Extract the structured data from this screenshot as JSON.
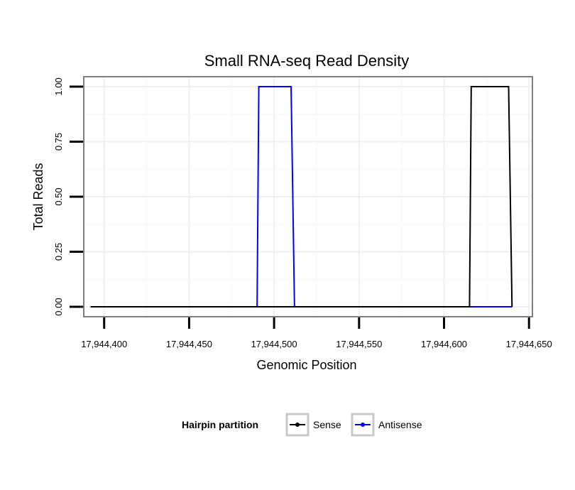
{
  "chart_data": {
    "type": "line",
    "title": "Small RNA-seq Read Density",
    "xlabel": "Genomic Position",
    "ylabel": "Total Reads",
    "xlim": [
      17944388,
      17944652
    ],
    "ylim": [
      -0.045,
      1.045
    ],
    "x_ticks": [
      17944400,
      17944450,
      17944500,
      17944550,
      17944600,
      17944650
    ],
    "x_tick_labels": [
      "17,944,400",
      "17,944,450",
      "17,944,500",
      "17,944,550",
      "17,944,600",
      "17,944,650"
    ],
    "y_ticks": [
      0,
      0.25,
      0.5,
      0.75,
      1
    ],
    "y_tick_labels": [
      "0.00",
      "0.25",
      "0.50",
      "0.75",
      "1.00"
    ],
    "grid": true,
    "legend": {
      "title": "Hairpin partition",
      "position": "bottom"
    },
    "series": [
      {
        "name": "Sense",
        "color": "#000000",
        "x": [
          17944392,
          17944615,
          17944616,
          17944638,
          17944640
        ],
        "y": [
          0,
          0,
          1,
          1,
          0
        ]
      },
      {
        "name": "Antisense",
        "color": "#0000ff",
        "x": [
          17944392,
          17944490,
          17944491,
          17944510,
          17944512,
          17944640
        ],
        "y": [
          0,
          0,
          1,
          1,
          0,
          0
        ]
      }
    ]
  }
}
